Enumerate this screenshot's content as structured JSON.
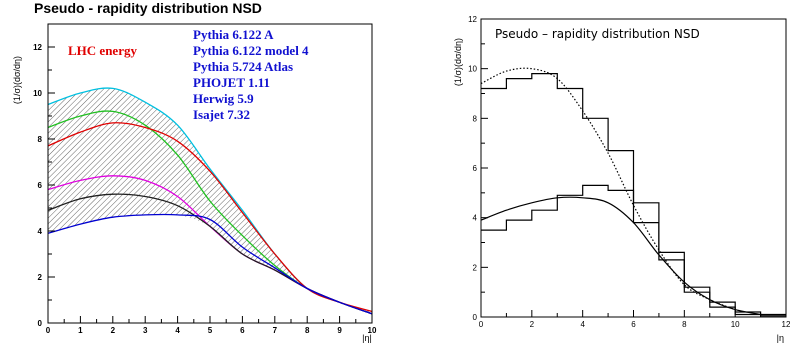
{
  "chart_data": [
    {
      "type": "line",
      "title": "Pseudo - rapidity distribution  NSD",
      "xlabel": "|η|",
      "ylabel": "(1/σ)(dσ/dη)",
      "xlim": [
        0,
        10
      ],
      "ylim": [
        0,
        13
      ],
      "xticks": [
        "0",
        "1",
        "2",
        "3",
        "4",
        "5",
        "6",
        "7",
        "8",
        "9",
        "10"
      ],
      "yticks": [
        "0",
        "2",
        "4",
        "6",
        "8",
        "10",
        "12"
      ],
      "annotation": "LHC energy",
      "legend_entries": [
        "Pythia 6.122 A",
        "Pythia 6.122 model 4",
        "Pythia 5.724 Atlas",
        "PHOJET 1.11",
        "Herwig 5.9",
        "Isajet 7.32"
      ],
      "legend_placement": "top-right",
      "colors": {
        "cyan": "#00c0e0",
        "green": "#20c020",
        "red": "#e00000",
        "magenta": "#e000e0",
        "dark": "#202020",
        "blue": "#0000d0",
        "annotation": "#e00000",
        "legend_text": "#1010d0",
        "shading": "#666666"
      },
      "shaded_band": "hatched region between highest and lowest curve",
      "x": [
        0,
        1,
        2,
        3,
        4,
        5,
        6,
        7,
        8,
        9,
        10
      ],
      "series": [
        {
          "color": "cyan",
          "values": [
            9.5,
            10.0,
            10.2,
            9.6,
            8.6,
            6.7,
            4.9,
            3.0,
            1.5,
            0.9,
            0.4
          ]
        },
        {
          "color": "green",
          "values": [
            8.5,
            9.0,
            9.2,
            8.6,
            7.3,
            5.3,
            3.8,
            2.5,
            1.5,
            0.9,
            0.4
          ]
        },
        {
          "color": "red",
          "values": [
            7.7,
            8.3,
            8.7,
            8.5,
            7.9,
            6.6,
            4.8,
            3.0,
            1.5,
            0.9,
            0.5
          ]
        },
        {
          "color": "magenta",
          "values": [
            5.8,
            6.2,
            6.4,
            6.2,
            5.5,
            4.2,
            3.0,
            2.3,
            1.5,
            0.9,
            0.4
          ]
        },
        {
          "color": "dark",
          "values": [
            4.9,
            5.4,
            5.6,
            5.5,
            5.1,
            4.2,
            3.0,
            2.3,
            1.5,
            0.9,
            0.4
          ]
        },
        {
          "color": "blue",
          "values": [
            3.9,
            4.3,
            4.6,
            4.7,
            4.7,
            4.5,
            3.3,
            2.4,
            1.5,
            0.9,
            0.4
          ]
        }
      ]
    },
    {
      "type": "line",
      "title": "Pseudo – rapidity distribution  NSD",
      "xlabel": "|η",
      "ylabel": "(1/σ)(dσ/dη)",
      "xlim": [
        0,
        12
      ],
      "ylim": [
        0,
        12
      ],
      "xticks": [
        "0",
        "2",
        "4",
        "6",
        "8",
        "10",
        "12"
      ],
      "yticks": [
        "0",
        "2",
        "4",
        "6",
        "8",
        "10",
        "12"
      ],
      "series": [
        {
          "style": "histogram",
          "x": [
            0,
            1,
            2,
            3,
            4,
            5,
            6,
            7,
            8,
            9,
            10,
            11,
            12
          ],
          "values": [
            9.2,
            9.6,
            9.8,
            9.2,
            8.0,
            6.7,
            4.6,
            2.6,
            1.2,
            0.6,
            0.2,
            0.1,
            0.05
          ]
        },
        {
          "style": "dotted",
          "x": [
            0,
            1,
            2,
            3,
            4,
            5,
            6,
            7,
            8,
            9,
            10
          ],
          "values": [
            9.4,
            9.9,
            10.0,
            9.6,
            8.3,
            6.6,
            4.5,
            2.7,
            1.3,
            0.7,
            0.3
          ]
        },
        {
          "style": "histogram",
          "x": [
            0,
            1,
            2,
            3,
            4,
            5,
            6,
            7,
            8,
            9,
            10,
            11,
            12
          ],
          "values": [
            3.5,
            3.9,
            4.3,
            4.9,
            5.3,
            5.1,
            3.8,
            2.3,
            1.0,
            0.4,
            0.1,
            0.05,
            0.02
          ]
        },
        {
          "style": "solid",
          "x": [
            0,
            1,
            2,
            3,
            4,
            5,
            6,
            7,
            8,
            9,
            10,
            11
          ],
          "values": [
            3.9,
            4.3,
            4.6,
            4.8,
            4.8,
            4.6,
            3.8,
            2.5,
            1.4,
            0.7,
            0.3,
            0.1
          ]
        }
      ]
    }
  ]
}
